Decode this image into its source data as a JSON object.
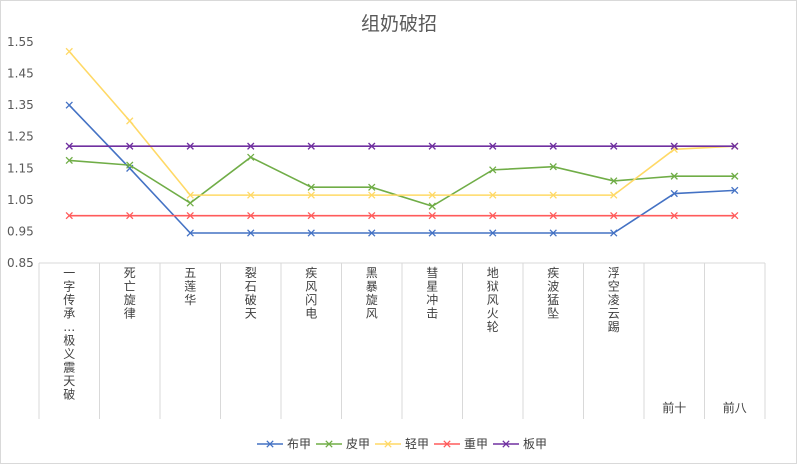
{
  "chart_data": {
    "type": "line",
    "title": "组奶破招",
    "xlabel": "",
    "ylabel": "",
    "ylim": [
      0.85,
      1.55
    ],
    "yticks": [
      "1.55",
      "1.45",
      "1.35",
      "1.25",
      "1.15",
      "1.05",
      "0.95",
      "0.85"
    ],
    "ytick_values": [
      1.55,
      1.45,
      1.35,
      1.25,
      1.15,
      1.05,
      0.95,
      0.85
    ],
    "categories": [
      "一字传承·极义震天破",
      "死亡旋律",
      "五莲华",
      "裂石破天",
      "疾风闪电",
      "黑暴旋风",
      "彗星冲击",
      "地狱风火轮",
      "疾波猛坠",
      "浮空凌云踢",
      "前十",
      "前八"
    ],
    "grid": false,
    "legend": "bottom",
    "series": [
      {
        "name": "布甲",
        "color": "#4472C4",
        "values": [
          1.35,
          1.15,
          0.945,
          0.945,
          0.945,
          0.945,
          0.945,
          0.945,
          0.945,
          0.945,
          1.07,
          1.08
        ]
      },
      {
        "name": "皮甲",
        "color": "#70AD47",
        "values": [
          1.175,
          1.16,
          1.04,
          1.185,
          1.09,
          1.09,
          1.03,
          1.145,
          1.155,
          1.11,
          1.125,
          1.125
        ]
      },
      {
        "name": "轻甲",
        "color": "#FFD966",
        "values": [
          1.52,
          1.3,
          1.065,
          1.065,
          1.065,
          1.065,
          1.065,
          1.065,
          1.065,
          1.065,
          1.21,
          1.22
        ]
      },
      {
        "name": "重甲",
        "color": "#FF5B5B",
        "values": [
          1.0,
          1.0,
          1.0,
          1.0,
          1.0,
          1.0,
          1.0,
          1.0,
          1.0,
          1.0,
          1.0,
          1.0
        ]
      },
      {
        "name": "板甲",
        "color": "#7030A0",
        "values": [
          1.22,
          1.22,
          1.22,
          1.22,
          1.22,
          1.22,
          1.22,
          1.22,
          1.22,
          1.22,
          1.22,
          1.22
        ]
      }
    ]
  }
}
